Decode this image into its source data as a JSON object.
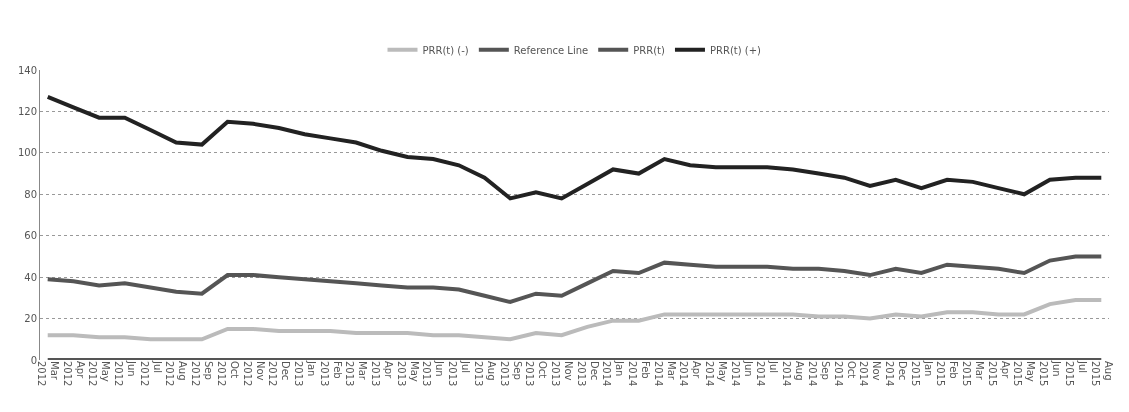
{
  "chart_data": {
    "type": "line",
    "categories": [
      "Mar 2012",
      "Apr 2012",
      "May 2012",
      "Jun 2012",
      "Jul 2012",
      "Aug 2012",
      "Sep 2012",
      "Oct 2012",
      "Nov 2012",
      "Dec 2012",
      "Jan 2013",
      "Feb 2013",
      "Mar 2013",
      "Apr 2013",
      "May 2013",
      "Jun 2013",
      "Jul 2013",
      "Aug 2013",
      "Sep 2013",
      "Oct 2013",
      "Nov 2013",
      "Dec 2013",
      "Jan 2014",
      "Feb 2014",
      "Mar 2014",
      "Apr 2014",
      "May 2014",
      "Jun 2014",
      "Jul 2014",
      "Aug 2014",
      "Sep 2014",
      "Oct 2014",
      "Nov 2014",
      "Dec 2014",
      "Jan 2015",
      "Feb 2015",
      "Mar 2015",
      "Apr 2015",
      "May 2015",
      "Jun 2015",
      "Jul 2015",
      "Aug 2015"
    ],
    "series": [
      {
        "name": "PRR(t) (-)",
        "color": "#bbbbbb",
        "values": [
          12,
          12,
          11,
          11,
          10,
          10,
          10,
          15,
          15,
          14,
          14,
          14,
          13,
          13,
          13,
          12,
          12,
          11,
          10,
          13,
          12,
          16,
          19,
          19,
          22,
          22,
          22,
          22,
          22,
          22,
          21,
          21,
          20,
          22,
          21,
          23,
          23,
          22,
          22,
          27,
          29,
          29
        ]
      },
      {
        "name": "Reference Line",
        "color": "#555555",
        "values": [
          0,
          0,
          0,
          0,
          0,
          0,
          0,
          0,
          0,
          0,
          0,
          0,
          0,
          0,
          0,
          0,
          0,
          0,
          0,
          0,
          0,
          0,
          0,
          0,
          0,
          0,
          0,
          0,
          0,
          0,
          0,
          0,
          0,
          0,
          0,
          0,
          0,
          0,
          0,
          0,
          0,
          0
        ]
      },
      {
        "name": "PRR(t)",
        "color": "#555555",
        "values": [
          39,
          38,
          36,
          37,
          35,
          33,
          32,
          41,
          41,
          40,
          39,
          38,
          37,
          36,
          35,
          35,
          34,
          31,
          28,
          32,
          31,
          37,
          43,
          42,
          47,
          46,
          45,
          45,
          45,
          44,
          44,
          43,
          41,
          44,
          42,
          46,
          45,
          44,
          42,
          48,
          50,
          50
        ]
      },
      {
        "name": "PRR(t) (+)",
        "color": "#222222",
        "values": [
          127,
          122,
          117,
          117,
          111,
          105,
          104,
          115,
          114,
          112,
          109,
          107,
          105,
          101,
          98,
          97,
          94,
          88,
          78,
          81,
          78,
          85,
          92,
          90,
          97,
          94,
          93,
          93,
          93,
          92,
          90,
          88,
          84,
          87,
          83,
          87,
          86,
          83,
          80,
          87,
          88,
          88
        ]
      }
    ],
    "ylim": [
      0,
      140
    ],
    "yticks": [
      0,
      20,
      40,
      60,
      80,
      100,
      120,
      140
    ],
    "grid": "y",
    "legend": "top",
    "marker": "none",
    "line_style": "solid"
  }
}
